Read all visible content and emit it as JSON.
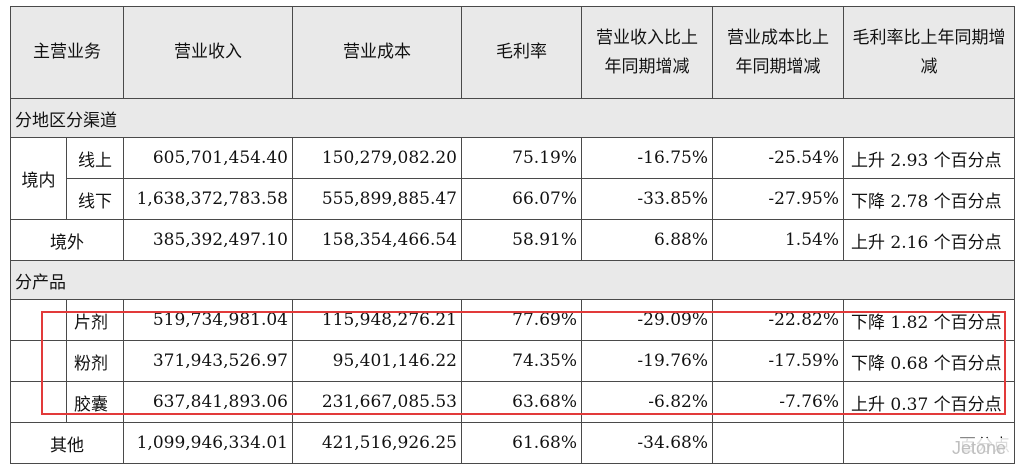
{
  "headers": [
    "主营业务",
    "营业收入",
    "营业成本",
    "毛利率",
    "营业收入比上年同期增减",
    "营业成本比上年同期增减",
    "毛利率比上年同期增减"
  ],
  "sections": [
    {
      "title": "分地区分渠道",
      "group_label": "境内",
      "group_rows": [
        {
          "label": "线上",
          "revenue": "605,701,454.40",
          "cost": "150,279,082.20",
          "margin": "75.19%",
          "rev_change": "-16.75%",
          "cost_change": "-25.54%",
          "margin_change": "上升 2.93 个百分点"
        },
        {
          "label": "线下",
          "revenue": "1,638,372,783.58",
          "cost": "555,899,885.47",
          "margin": "66.07%",
          "rev_change": "-33.85%",
          "cost_change": "-27.95%",
          "margin_change": "下降 2.78 个百分点"
        }
      ],
      "other_row": {
        "label": "境外",
        "revenue": "385,392,497.10",
        "cost": "158,354,466.54",
        "margin": "58.91%",
        "rev_change": "6.88%",
        "cost_change": "1.54%",
        "margin_change": "上升 2.16 个百分点"
      }
    },
    {
      "title": "分产品",
      "rows": [
        {
          "label": "片剂",
          "revenue": "519,734,981.04",
          "cost": "115,948,276.21",
          "margin": "77.69%",
          "rev_change": "-29.09%",
          "cost_change": "-22.82%",
          "margin_change": "下降 1.82 个百分点"
        },
        {
          "label": "粉剂",
          "revenue": "371,943,526.97",
          "cost": "95,401,146.22",
          "margin": "74.35%",
          "rev_change": "-19.76%",
          "cost_change": "-17.59%",
          "margin_change": "下降 0.68 个百分点"
        },
        {
          "label": "胶囊",
          "revenue": "637,841,893.06",
          "cost": "231,667,085.53",
          "margin": "63.68%",
          "rev_change": "-6.82%",
          "cost_change": "-7.76%",
          "margin_change": "上升 0.37 个百分点"
        }
      ],
      "other_row": {
        "label": "其他",
        "revenue": "1,099,946,334.01",
        "cost": "421,516,926.25",
        "margin": "61.68%",
        "rev_change": "-34.68%",
        "cost_change": "",
        "margin_change": "百分点"
      }
    }
  ],
  "watermark": "Jetone",
  "highlight_color": "#e23a3a"
}
